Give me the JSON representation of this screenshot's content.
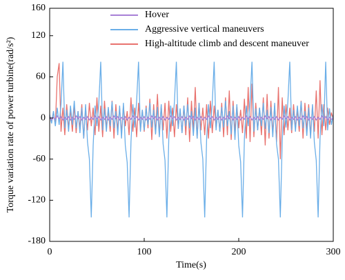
{
  "chart_data": {
    "type": "line",
    "xlabel": "Time(s)",
    "ylabel": "Torque variation rate of power turbine(rad/s²)",
    "xlim": [
      0,
      300
    ],
    "xticks": [
      0,
      100,
      200,
      300
    ],
    "ylim": [
      -180,
      160
    ],
    "yticks": [
      -180,
      -120,
      -60,
      0,
      60,
      120,
      160
    ],
    "legend": "upper center",
    "x": [
      0,
      2,
      4,
      6,
      8,
      10,
      12,
      14,
      16,
      18,
      20,
      22,
      24,
      26,
      28,
      30,
      32,
      34,
      36,
      38,
      40,
      42,
      44,
      46,
      48,
      50,
      52,
      54,
      56,
      58,
      60,
      62,
      64,
      66,
      68,
      70,
      72,
      74,
      76,
      78,
      80,
      82,
      84,
      86,
      88,
      90,
      92,
      94,
      96,
      98,
      100,
      102,
      104,
      106,
      108,
      110,
      112,
      114,
      116,
      118,
      120,
      122,
      124,
      126,
      128,
      130,
      132,
      134,
      136,
      138,
      140,
      142,
      144,
      146,
      148,
      150,
      152,
      154,
      156,
      158,
      160,
      162,
      164,
      166,
      168,
      170,
      172,
      174,
      176,
      178,
      180,
      182,
      184,
      186,
      188,
      190,
      192,
      194,
      196,
      198,
      200,
      202,
      204,
      206,
      208,
      210,
      212,
      214,
      216,
      218,
      220,
      222,
      224,
      226,
      228,
      230,
      232,
      234,
      236,
      238,
      240,
      242,
      244,
      246,
      248,
      250,
      252,
      254,
      256,
      258,
      260,
      262,
      264,
      266,
      268,
      270,
      272,
      274,
      276,
      278,
      280,
      282,
      284,
      286,
      288,
      290,
      292,
      294,
      296,
      298,
      300
    ],
    "series": [
      {
        "name": "Hover",
        "color": "#a77fd6",
        "values": [
          2,
          -3,
          1,
          -2,
          3,
          -1,
          2,
          -3,
          1,
          -2,
          2,
          -3,
          1,
          -2,
          3,
          -1,
          2,
          -3,
          1,
          -2,
          2,
          -3,
          1,
          -2,
          3,
          -1,
          2,
          -3,
          1,
          -2,
          2,
          -3,
          1,
          -2,
          3,
          -1,
          2,
          -3,
          1,
          -2,
          2,
          -3,
          1,
          -2,
          3,
          -1,
          2,
          -3,
          1,
          -2,
          2,
          -3,
          1,
          -2,
          3,
          -1,
          2,
          -3,
          1,
          -2,
          2,
          -3,
          1,
          -2,
          3,
          -1,
          2,
          -3,
          1,
          -2,
          2,
          -3,
          1,
          -2,
          3,
          -1,
          2,
          -3,
          1,
          -2,
          2,
          -3,
          1,
          -2,
          3,
          -1,
          2,
          -3,
          1,
          -2,
          2,
          -3,
          1,
          -2,
          3,
          -1,
          2,
          -3,
          1,
          -2,
          2,
          -3,
          1,
          -2,
          3,
          -1,
          2,
          -3,
          1,
          -2,
          2,
          -3,
          1,
          -2,
          3,
          -1,
          2,
          -3,
          1,
          -2,
          2,
          -3,
          1,
          -2,
          3,
          -1,
          2,
          -3,
          1,
          -2,
          2,
          -3,
          1,
          -2,
          3,
          -1,
          2,
          -3,
          1,
          -2,
          2,
          -3,
          1,
          -2,
          3,
          -1,
          2,
          -3,
          1,
          -2,
          0
        ]
      },
      {
        "name": "Aggressive vertical maneuvers",
        "color": "#6aaee8",
        "values": [
          5,
          -8,
          10,
          -12,
          15,
          -10,
          20,
          82,
          -15,
          12,
          -20,
          18,
          -10,
          25,
          -15,
          10,
          -22,
          15,
          -30,
          20,
          -35,
          -60,
          -145,
          -40,
          18,
          -12,
          22,
          82,
          -18,
          14,
          -20,
          16,
          -12,
          24,
          -15,
          10,
          -25,
          18,
          -30,
          22,
          -40,
          -65,
          -145,
          -35,
          20,
          -14,
          25,
          82,
          -20,
          12,
          -18,
          15,
          -10,
          22,
          -14,
          12,
          -24,
          16,
          -28,
          20,
          -38,
          -62,
          -145,
          -30,
          18,
          -12,
          24,
          82,
          -16,
          14,
          -22,
          18,
          -12,
          20,
          -15,
          10,
          -26,
          15,
          -30,
          22,
          -36,
          -60,
          -145,
          -32,
          20,
          -15,
          22,
          82,
          -18,
          12,
          -20,
          16,
          -14,
          25,
          -12,
          10,
          -24,
          18,
          -32,
          20,
          -40,
          -64,
          -145,
          -30,
          18,
          -12,
          26,
          82,
          -20,
          14,
          -18,
          15,
          -12,
          22,
          -16,
          12,
          -22,
          16,
          -28,
          22,
          -38,
          -60,
          -145,
          -34,
          18,
          -14,
          24,
          82,
          -18,
          12,
          -20,
          18,
          -12,
          24,
          -15,
          10,
          -26,
          15,
          -30,
          20,
          -36,
          -62,
          -145,
          -30,
          20,
          -12,
          82,
          -18,
          14,
          -10,
          5
        ]
      },
      {
        "name": "High-altitude climb and descent maneuver",
        "color": "#e8726e",
        "values": [
          3,
          -5,
          8,
          -10,
          60,
          80,
          -20,
          15,
          -25,
          20,
          -15,
          12,
          -20,
          18,
          -22,
          10,
          -15,
          20,
          -30,
          15,
          -18,
          22,
          -12,
          15,
          -25,
          30,
          -20,
          18,
          -28,
          25,
          -15,
          12,
          -20,
          25,
          -30,
          20,
          -18,
          15,
          -22,
          18,
          -12,
          10,
          -25,
          30,
          -20,
          15,
          -28,
          22,
          -18,
          12,
          -20,
          18,
          -15,
          28,
          -32,
          20,
          -22,
          35,
          -25,
          18,
          -18,
          22,
          -30,
          25,
          -20,
          15,
          -28,
          20,
          -15,
          12,
          -22,
          18,
          -25,
          30,
          -35,
          25,
          -20,
          45,
          -30,
          22,
          -18,
          15,
          -25,
          20,
          -30,
          25,
          -22,
          18,
          -15,
          12,
          -20,
          22,
          -28,
          30,
          -25,
          40,
          -32,
          25,
          -20,
          18,
          -15,
          12,
          -22,
          28,
          -30,
          45,
          -35,
          50,
          -28,
          22,
          -18,
          15,
          -25,
          30,
          -40,
          35,
          -30,
          25,
          -22,
          18,
          -35,
          45,
          -60,
          30,
          -25,
          20,
          -18,
          15,
          -22,
          20,
          -15,
          12,
          -20,
          25,
          -30,
          22,
          -18,
          20,
          -25,
          18,
          -20,
          40,
          -30,
          55,
          -25,
          20,
          -18,
          15,
          -10,
          8,
          -3
        ]
      }
    ]
  }
}
